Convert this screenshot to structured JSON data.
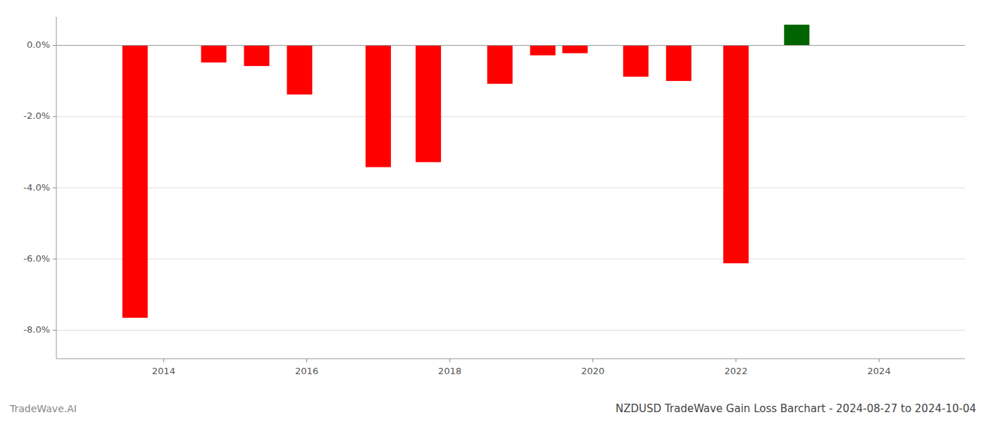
{
  "chart_data": {
    "type": "bar",
    "title": "NZDUSD TradeWave Gain Loss Barchart - 2024-08-27 to 2024-10-04",
    "annotations": [
      "TradeWave.AI"
    ],
    "x": [
      2013.6,
      2014.7,
      2015.3,
      2015.9,
      2017.0,
      2017.7,
      2018.7,
      2019.3,
      2019.75,
      2020.6,
      2021.2,
      2022.0,
      2022.85
    ],
    "values": [
      -7.65,
      -0.48,
      -0.58,
      -1.38,
      -3.42,
      -3.28,
      -1.08,
      -0.28,
      -0.22,
      -0.88,
      -1.0,
      -6.12,
      0.58
    ],
    "colors": [
      "#ff0000",
      "#ff0000",
      "#ff0000",
      "#ff0000",
      "#ff0000",
      "#ff0000",
      "#ff0000",
      "#ff0000",
      "#ff0000",
      "#ff0000",
      "#ff0000",
      "#ff0000",
      "#006400"
    ],
    "xlim": [
      2012.5,
      2025.2
    ],
    "xticks": [
      2014,
      2016,
      2018,
      2020,
      2022,
      2024
    ],
    "ylim": [
      -8.8,
      0.8
    ],
    "yticks": [
      {
        "value": 0.0,
        "label": "0.0%"
      },
      {
        "value": -2.0,
        "label": "-2.0%"
      },
      {
        "value": -4.0,
        "label": "-4.0%"
      },
      {
        "value": -6.0,
        "label": "-6.0%"
      },
      {
        "value": -8.0,
        "label": "-8.0%"
      }
    ],
    "grid": true
  }
}
